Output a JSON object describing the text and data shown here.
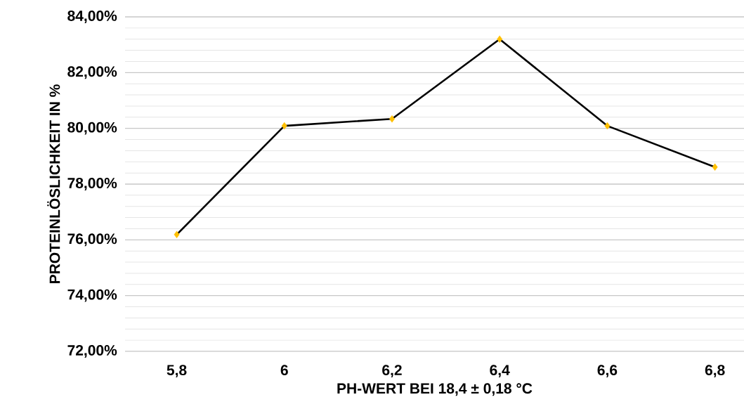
{
  "chart_data": {
    "type": "line",
    "xlabel": "PH-WERT BEI 18,4 ± 0,18 °C",
    "ylabel": "PROTEINLÖSLICHKEIT IN %",
    "categories": [
      "5,8",
      "6",
      "6,2",
      "6,4",
      "6,6",
      "6,8"
    ],
    "series": [
      {
        "color": "#000000",
        "colors": [
          "#ffc000",
          "#ffc000",
          "#ffc000",
          "#ffc000",
          "#ffc000",
          "#ffc000"
        ],
        "values": [
          76.19,
          80.09,
          80.34,
          83.2,
          80.09,
          78.61
        ]
      }
    ],
    "marker": "diamond",
    "line_style": "solid",
    "ylim": [
      72,
      84
    ],
    "yticks": [
      {
        "value": 72,
        "label": "72,00%"
      },
      {
        "value": 74,
        "label": "74,00%"
      },
      {
        "value": 76,
        "label": "76,00%"
      },
      {
        "value": 78,
        "label": "78,00%"
      },
      {
        "value": 80,
        "label": "80,00%"
      },
      {
        "value": 82,
        "label": "82,00%"
      },
      {
        "value": 84,
        "label": "84,00%"
      }
    ],
    "grid": true
  }
}
